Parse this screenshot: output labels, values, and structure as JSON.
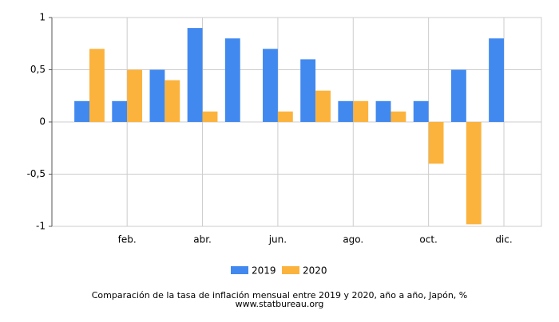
{
  "chart_data": {
    "type": "bar",
    "categories": [
      null,
      "feb.",
      null,
      "abr.",
      null,
      "jun.",
      null,
      "ago.",
      null,
      "oct.",
      null,
      "dic."
    ],
    "series": [
      {
        "name": "2019",
        "color": "#4189ef",
        "values": [
          0.2,
          0.2,
          0.5,
          0.9,
          0.8,
          0.7,
          0.6,
          0.2,
          0.2,
          0.2,
          0.5,
          0.8
        ]
      },
      {
        "name": "2020",
        "color": "#fbb33d",
        "values": [
          0.7,
          0.5,
          0.4,
          0.1,
          0,
          0.1,
          0.3,
          0.2,
          0.1,
          -0.4,
          -0.98,
          null
        ]
      }
    ],
    "ylim": [
      -1,
      1
    ],
    "yticks": [
      {
        "value": -1,
        "label": "-1"
      },
      {
        "value": -0.5,
        "label": "-0,5"
      },
      0,
      {
        "value": 0.5,
        "label": "0,5"
      },
      1
    ],
    "grid": true,
    "legend": "bottom",
    "title": "Comparación de la tasa de inflación mensual entre 2019 y 2020, año a año, Japón, %",
    "source": "www.statbureau.org"
  }
}
